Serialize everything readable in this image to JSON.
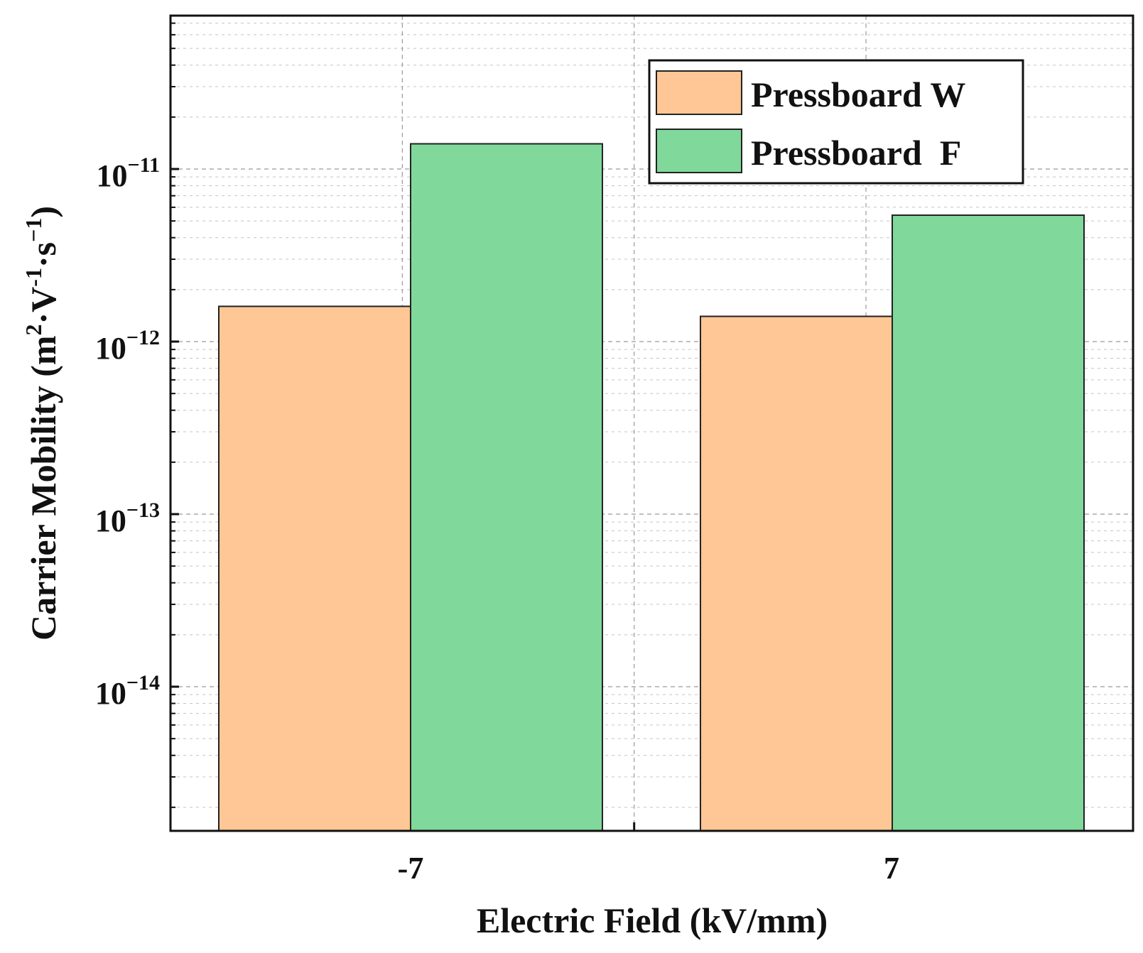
{
  "chart_data": {
    "type": "bar",
    "scale": "log",
    "categories": [
      "-7",
      "7"
    ],
    "series": [
      {
        "name": "Pressboard W",
        "color": "#fec795",
        "values": [
          1.6e-12,
          1.4e-12
        ]
      },
      {
        "name": "Pressboard  F",
        "color": "#80d89b",
        "values": [
          1.4e-11,
          5.4e-12
        ]
      }
    ],
    "xlabel": "Electric Field (kV/mm)",
    "ylabel": {
      "text": "Carrier Mobility (m",
      "sup1": "2",
      "mid1": "·V",
      "sup2": "-1",
      "mid2": "·s",
      "sup3": "−1",
      "end": ")"
    },
    "ylim": [
      1.6e-15,
      8e-11
    ],
    "yticks": [
      {
        "base": "10",
        "exp": "−11",
        "value": 1e-11
      },
      {
        "base": "10",
        "exp": "−12",
        "value": 1e-12
      },
      {
        "base": "10",
        "exp": "−13",
        "value": 1e-13
      },
      {
        "base": "10",
        "exp": "−14",
        "value": 1e-14
      }
    ],
    "grid": true,
    "legend_position": "top-right"
  }
}
